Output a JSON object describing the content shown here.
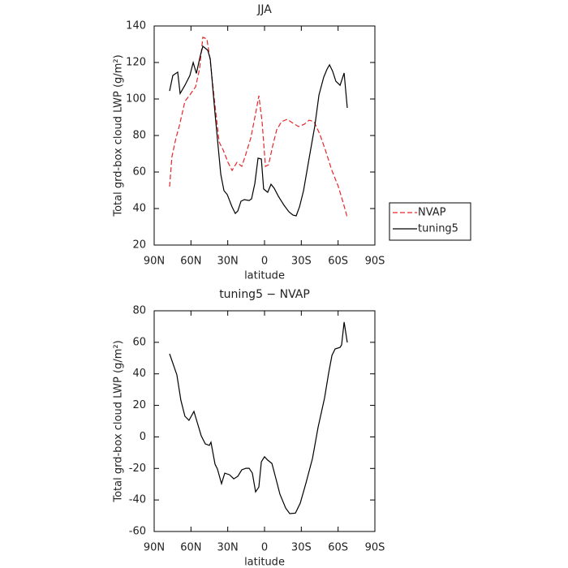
{
  "chart_data": [
    {
      "type": "line",
      "title": "JJA",
      "xlabel": "latitude",
      "ylabel": "Total grd-box cloud LWP (g/m²)",
      "xlim": [
        90,
        -90
      ],
      "ylim": [
        20,
        140
      ],
      "xticks": [
        {
          "value": 90,
          "label": "90N"
        },
        {
          "value": 60,
          "label": "60N"
        },
        {
          "value": 30,
          "label": "30N"
        },
        0,
        {
          "value": -30,
          "label": "30S"
        },
        {
          "value": -60,
          "label": "60S"
        },
        {
          "value": -90,
          "label": "90S"
        }
      ],
      "yticks": [
        20,
        40,
        60,
        80,
        100,
        120,
        140
      ],
      "legend": "right",
      "series": [
        {
          "name": "NVAP",
          "color": "#e8262a",
          "line_style": "dashed",
          "x": [
            77.4,
            75.5,
            72.2,
            69.5,
            64.9,
            60.9,
            56.2,
            53,
            50.3,
            47,
            44.3,
            40.4,
            37,
            33.7,
            29.8,
            26.5,
            22.5,
            18.5,
            15.2,
            11.2,
            7.3,
            4.6,
            2,
            -0.7,
            -3.3,
            -6.6,
            -9.9,
            -13.9,
            -18.5,
            -23.2,
            -27.8,
            -32.4,
            -36.4,
            -40.4,
            -45,
            -49.6,
            -54.9,
            -60.2,
            -64.2,
            -67.5
          ],
          "values": [
            52,
            68.4,
            78.7,
            85.3,
            98.7,
            102.2,
            106.7,
            116.4,
            133.8,
            132.9,
            120.9,
            96.4,
            76.4,
            72,
            65.3,
            60.9,
            65.3,
            63.1,
            69.8,
            78.7,
            92,
            101.8,
            87.6,
            63.1,
            64,
            74.2,
            83.1,
            87.6,
            88.9,
            86.7,
            84.9,
            86.2,
            88.4,
            87.6,
            80.9,
            72,
            60.9,
            52,
            43.1,
            35.1
          ]
        },
        {
          "name": "tuning5",
          "color": "#000000",
          "line_style": "solid",
          "x": [
            77.4,
            74.8,
            70.8,
            68.8,
            64.9,
            60.9,
            58.2,
            55.6,
            52.3,
            50.3,
            46.3,
            44.3,
            40.4,
            35.7,
            33.1,
            30.4,
            26.5,
            23.8,
            21.8,
            19.2,
            16.5,
            12.6,
            10.6,
            7.9,
            5.3,
            2.6,
            0.7,
            -2.6,
            -5.3,
            -7.9,
            -11.3,
            -15.9,
            -19.9,
            -23.2,
            -25.8,
            -28.5,
            -31.8,
            -36.4,
            -41,
            -44.4,
            -48.3,
            -51,
            -53,
            -55.6,
            -58.2,
            -61.6,
            -64.9,
            -67.5
          ],
          "values": [
            104.4,
            112.9,
            114.7,
            103,
            107.5,
            112.9,
            120,
            114,
            124,
            128.9,
            126.7,
            122,
            92,
            58.7,
            49.8,
            47.6,
            40.9,
            37.3,
            38.7,
            44,
            44.9,
            44.4,
            45.3,
            53.8,
            67.6,
            67.1,
            50.7,
            48.9,
            53.3,
            51.1,
            46.7,
            41.8,
            38.2,
            36.4,
            36,
            40.9,
            49.8,
            67.6,
            85.3,
            102.2,
            112,
            116.4,
            118.7,
            115.1,
            109.8,
            107.5,
            114.2,
            95.1
          ]
        }
      ]
    },
    {
      "type": "line",
      "title": "tuning5 − NVAP",
      "xlabel": "latitude",
      "ylabel": "Total grd-box cloud LWP (g/m²)",
      "xlim": [
        90,
        -90
      ],
      "ylim": [
        -60,
        80
      ],
      "xticks": [
        {
          "value": 90,
          "label": "90N"
        },
        {
          "value": 60,
          "label": "60N"
        },
        {
          "value": 30,
          "label": "30N"
        },
        0,
        {
          "value": -30,
          "label": "30S"
        },
        {
          "value": -60,
          "label": "60S"
        },
        {
          "value": -90,
          "label": "90S"
        }
      ],
      "yticks": [
        -60,
        -40,
        -20,
        0,
        20,
        40,
        60,
        80
      ],
      "series": [
        {
          "color": "#000000",
          "line_style": "solid",
          "x": [
            77.4,
            71.5,
            68.2,
            64.9,
            61.6,
            57.6,
            55,
            51.6,
            48.3,
            45,
            43.7,
            40.4,
            38.4,
            35.1,
            32.4,
            28.5,
            25.1,
            21.8,
            18.5,
            15.2,
            12.6,
            9.9,
            7.3,
            4.6,
            2.6,
            0,
            -2.6,
            -6,
            -9.3,
            -12.6,
            -17.3,
            -20.6,
            -25.2,
            -29.1,
            -33.8,
            -39.1,
            -43.7,
            -49,
            -52.3,
            -55,
            -57.6,
            -61.6,
            -62.9,
            -64.9,
            -67.5
          ],
          "values": [
            52.7,
            39.3,
            23.3,
            13.1,
            10.5,
            16.2,
            9.5,
            0.7,
            -4.4,
            -5.4,
            -3.4,
            -17.3,
            -20.4,
            -29.7,
            -23,
            -24,
            -26.6,
            -25,
            -20.9,
            -19.9,
            -19.9,
            -23,
            -34.9,
            -31.8,
            -15.8,
            -12.6,
            -14.7,
            -16.8,
            -26.6,
            -36.4,
            -45.2,
            -48.7,
            -48.3,
            -42.1,
            -29.2,
            -13.7,
            6.1,
            24.7,
            40.4,
            51.7,
            55.8,
            56.8,
            58.4,
            72.8,
            59.9
          ]
        }
      ]
    }
  ]
}
